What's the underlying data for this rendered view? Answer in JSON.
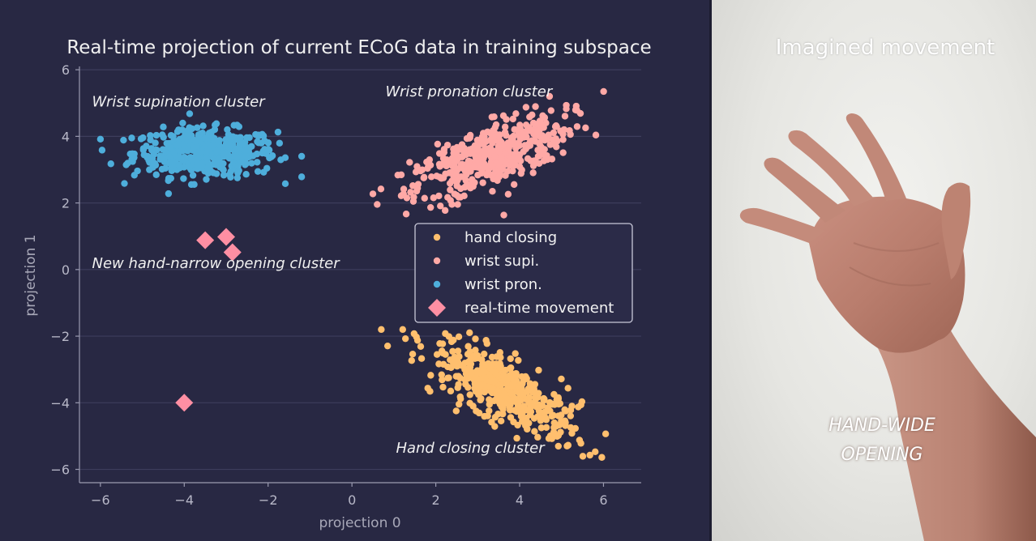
{
  "right_panel": {
    "title": "Imagined movement",
    "mode_label": "HAND-WIDE\nOPENING",
    "hand_image": "open-hand-photo"
  },
  "colors": {
    "background": "#282843",
    "hand_closing": "#ffbf6e",
    "wrist_supi": "#ffa9a6",
    "wrist_pron": "#4eaedb",
    "real_time": "#ff8fa3",
    "grid": "#3d3d5c"
  },
  "chart_data": {
    "type": "scatter",
    "title": "Real-time projection of current ECoG data in training subspace",
    "xlabel": "projection 0",
    "ylabel": "projection 1",
    "xlim": [
      -6.5,
      6.9
    ],
    "ylim": [
      -6.4,
      6.1
    ],
    "xticks": [
      -6,
      -4,
      -2,
      0,
      2,
      4,
      6
    ],
    "yticks": [
      -6,
      -4,
      -2,
      0,
      2,
      4,
      6
    ],
    "xtick_labels": [
      "−6",
      "−4",
      "−2",
      "0",
      "2",
      "4",
      "6"
    ],
    "ytick_labels": [
      "−6",
      "−4",
      "−2",
      "0",
      "2",
      "4",
      "6"
    ],
    "grid": "horizontal",
    "legend_placement": "center-right",
    "series": [
      {
        "name": "hand closing",
        "marker": "circle",
        "color": "#ffbf6e",
        "cluster": {
          "center": [
            3.6,
            -3.6
          ],
          "sd_major": 1.05,
          "sd_minor": 0.38,
          "angle_deg": -38,
          "count": 450,
          "range_x": [
            0.7,
            6.3
          ],
          "range_y": [
            -5.9,
            -1.8
          ]
        }
      },
      {
        "name": "wrist supi.",
        "marker": "circle",
        "color": "#ffa9a6",
        "cluster": {
          "center": [
            3.3,
            3.4
          ],
          "sd_major": 1.05,
          "sd_minor": 0.42,
          "angle_deg": 30,
          "count": 450,
          "range_x": [
            0.5,
            6.3
          ],
          "range_y": [
            1.6,
            5.5
          ]
        }
      },
      {
        "name": "wrist pron.",
        "marker": "circle",
        "color": "#4eaedb",
        "cluster": {
          "center": [
            -3.5,
            3.5
          ],
          "sd_major": 0.85,
          "sd_minor": 0.36,
          "angle_deg": 0,
          "count": 450,
          "range_x": [
            -6.0,
            -1.2
          ],
          "range_y": [
            1.9,
            5.0
          ]
        }
      },
      {
        "name": "real-time movement",
        "marker": "diamond",
        "color": "#ff8fa3",
        "points": [
          [
            -3.5,
            0.88
          ],
          [
            -3.0,
            0.98
          ],
          [
            -2.85,
            0.52
          ],
          [
            -4.0,
            -4.0
          ]
        ]
      }
    ],
    "annotations": [
      {
        "text": "Wrist supination cluster",
        "x": -6.2,
        "y": 4.9
      },
      {
        "text": "Wrist pronation cluster",
        "x": 0.8,
        "y": 5.2
      },
      {
        "text": "New hand-narrow opening cluster",
        "x": -6.2,
        "y": 0.05
      },
      {
        "text": "Hand closing cluster",
        "x": 1.05,
        "y": -5.5
      }
    ]
  }
}
